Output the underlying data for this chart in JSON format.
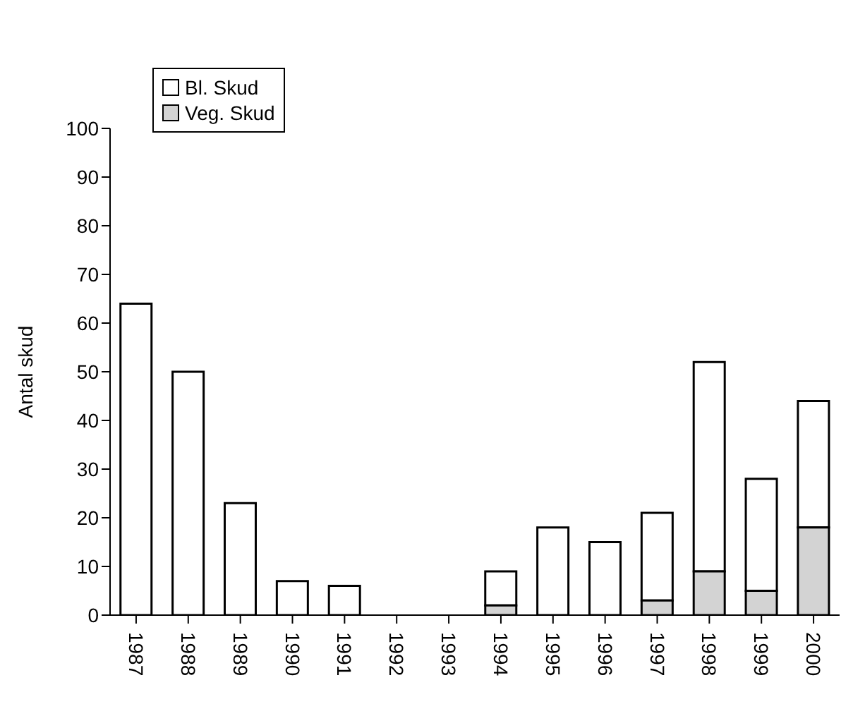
{
  "chart_data": {
    "type": "bar",
    "ylabel": "Antal skud",
    "stacked": true,
    "categories": [
      "1987",
      "1988",
      "1989",
      "1990",
      "1991",
      "1992",
      "1993",
      "1994",
      "1995",
      "1996",
      "1997",
      "1998",
      "1999",
      "2000"
    ],
    "series": [
      {
        "name": "Veg. Skud",
        "color": "#d3d3d3",
        "values": [
          0,
          0,
          0,
          0,
          0,
          0,
          0,
          2,
          0,
          0,
          3,
          9,
          5,
          18
        ]
      },
      {
        "name": "Bl. Skud",
        "color": "#ffffff",
        "values": [
          64,
          50,
          23,
          7,
          6,
          0,
          0,
          7,
          18,
          15,
          18,
          43,
          23,
          26
        ]
      }
    ],
    "ylim": [
      0,
      100
    ],
    "yticks": [
      0,
      10,
      20,
      30,
      40,
      50,
      60,
      70,
      80,
      90,
      100
    ],
    "grid": false,
    "legend": "top left"
  }
}
